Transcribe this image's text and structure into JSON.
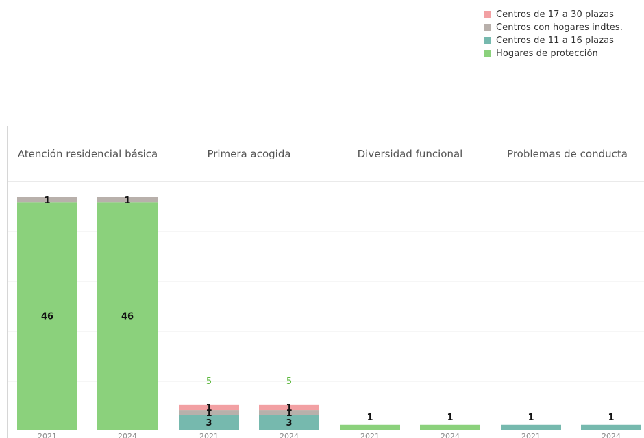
{
  "colors": {
    "centros_17_30": "#f2a0a3",
    "centros_hogares": "#b8b0ab",
    "centros_11_16": "#76b9ae",
    "hogares_proteccion": "#8bd17c",
    "total_label": "#5cb83c",
    "panel_header_text": "#555555",
    "tick_text": "#888888",
    "gridline": "#eeeeee",
    "divider": "#d6d6d6"
  },
  "legend": {
    "items": [
      {
        "label": "Centros de 17 a 30 plazas",
        "color": "#f2a0a3"
      },
      {
        "label": "Centros con hogares indtes.",
        "color": "#b8b0ab"
      },
      {
        "label": "Centros de 11 a 16 plazas",
        "color": "#76b9ae"
      },
      {
        "label": "Hogares de protección",
        "color": "#8bd17c"
      }
    ]
  },
  "chart_data": {
    "type": "bar",
    "stacked": true,
    "y_range": [
      0,
      47
    ],
    "grid": true,
    "legend_position": "top-right",
    "stack_order": [
      "Hogares de protección",
      "Centros de 11 a 16 plazas",
      "Centros con hogares indtes.",
      "Centros de 17 a 30 plazas"
    ],
    "panels": [
      {
        "title": "Atención residencial básica",
        "categories": [
          "2021",
          "2024"
        ],
        "series": [
          {
            "name": "Hogares de protección",
            "values": [
              46,
              46
            ]
          },
          {
            "name": "Centros de 11 a 16 plazas",
            "values": [
              0,
              0
            ]
          },
          {
            "name": "Centros con hogares indtes.",
            "values": [
              1,
              1
            ]
          },
          {
            "name": "Centros de 17 a 30 plazas",
            "values": [
              0,
              0
            ]
          }
        ],
        "totals": []
      },
      {
        "title": "Primera acogida",
        "categories": [
          "2021",
          "2024"
        ],
        "series": [
          {
            "name": "Hogares de protección",
            "values": [
              0,
              0
            ]
          },
          {
            "name": "Centros de 11 a 16 plazas",
            "values": [
              3,
              3
            ]
          },
          {
            "name": "Centros con hogares indtes.",
            "values": [
              1,
              1
            ]
          },
          {
            "name": "Centros de 17 a 30 plazas",
            "values": [
              1,
              1
            ]
          }
        ],
        "totals": [
          5,
          5
        ]
      },
      {
        "title": "Diversidad funcional",
        "categories": [
          "2021",
          "2024"
        ],
        "series": [
          {
            "name": "Hogares de protección",
            "values": [
              1,
              1
            ]
          },
          {
            "name": "Centros de 11 a 16 plazas",
            "values": [
              0,
              0
            ]
          },
          {
            "name": "Centros con hogares indtes.",
            "values": [
              0,
              0
            ]
          },
          {
            "name": "Centros de 17 a 30 plazas",
            "values": [
              0,
              0
            ]
          }
        ],
        "totals": []
      },
      {
        "title": "Problemas de conducta",
        "categories": [
          "2021",
          "2024"
        ],
        "series": [
          {
            "name": "Hogares de protección",
            "values": [
              0,
              0
            ]
          },
          {
            "name": "Centros de 11 a 16 plazas",
            "values": [
              1,
              1
            ]
          },
          {
            "name": "Centros con hogares indtes.",
            "values": [
              0,
              0
            ]
          },
          {
            "name": "Centros de 17 a 30 plazas",
            "values": [
              0,
              0
            ]
          }
        ],
        "totals": []
      }
    ]
  }
}
